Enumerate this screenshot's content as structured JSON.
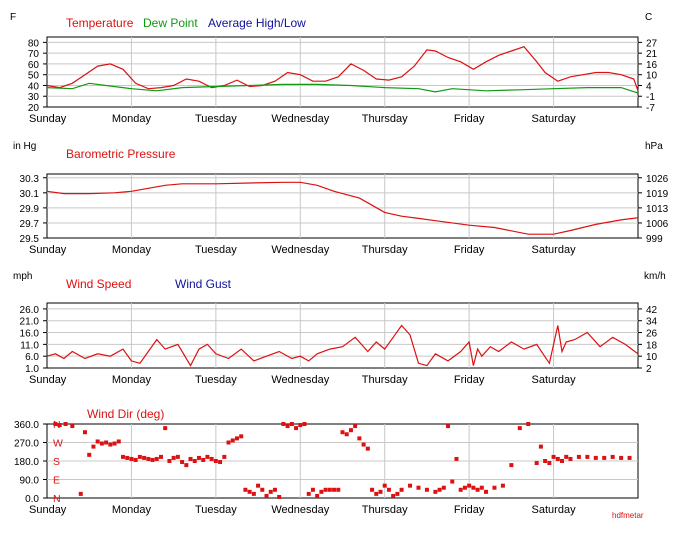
{
  "days": [
    "Sunday",
    "Monday",
    "Tuesday",
    "Wednesday",
    "Thursday",
    "Friday",
    "Saturday"
  ],
  "watermark": "hdfmetar",
  "colors": {
    "red": "#dd1111",
    "green": "#119911",
    "blue": "#111199",
    "grid": "#c8c8c8",
    "frame": "#000000"
  },
  "chart_data": [
    {
      "id": "temperature",
      "type": "line",
      "unit_left": "F",
      "unit_right": "C",
      "y_ticks": [
        80,
        70,
        60,
        50,
        40,
        30,
        20
      ],
      "right_ticks": [
        "27",
        "21",
        "16",
        "10",
        "4",
        "-1",
        "-7"
      ],
      "ylim": [
        20,
        85
      ],
      "grid": true,
      "legend": [
        {
          "label": "Temperature",
          "color": "#dd1111"
        },
        {
          "label": "Dew Point",
          "color": "#119911"
        },
        {
          "label": "Average High/Low",
          "color": "#111199"
        }
      ],
      "series": [
        {
          "name": "Temperature",
          "color": "#dd1111",
          "x": [
            0,
            0.15,
            0.3,
            0.45,
            0.6,
            0.75,
            0.9,
            1.05,
            1.2,
            1.35,
            1.5,
            1.65,
            1.8,
            1.95,
            2.1,
            2.25,
            2.4,
            2.55,
            2.7,
            2.85,
            3.0,
            3.15,
            3.3,
            3.45,
            3.6,
            3.75,
            3.9,
            4.05,
            4.2,
            4.35,
            4.5,
            4.6,
            4.75,
            4.9,
            5.05,
            5.2,
            5.35,
            5.5,
            5.65,
            5.8,
            5.9,
            6.05,
            6.2,
            6.35,
            6.5,
            6.65,
            6.8,
            6.95,
            7.0
          ],
          "values": [
            40,
            38,
            42,
            50,
            58,
            60,
            55,
            42,
            37,
            38,
            40,
            46,
            44,
            38,
            40,
            45,
            39,
            40,
            44,
            52,
            50,
            44,
            44,
            48,
            60,
            54,
            46,
            45,
            48,
            58,
            73,
            72,
            66,
            62,
            55,
            62,
            68,
            72,
            76,
            62,
            52,
            44,
            48,
            50,
            52,
            52,
            50,
            46,
            35
          ]
        },
        {
          "name": "Dew Point",
          "color": "#119911",
          "x": [
            0,
            0.3,
            0.5,
            0.7,
            1.0,
            1.3,
            1.6,
            2.0,
            2.4,
            2.8,
            3.2,
            3.6,
            4.0,
            4.4,
            4.6,
            4.8,
            5.2,
            5.6,
            6.0,
            6.4,
            6.8,
            7.0
          ],
          "values": [
            38,
            37,
            42,
            40,
            37,
            35,
            38,
            39,
            40,
            41,
            41,
            40,
            38,
            37,
            34,
            37,
            35,
            36,
            37,
            38,
            38,
            33
          ]
        }
      ]
    },
    {
      "id": "pressure",
      "type": "line",
      "unit_left": "in Hg",
      "unit_right": "hPa",
      "y_ticks": [
        30.3,
        30.1,
        29.9,
        29.7,
        29.5
      ],
      "right_ticks": [
        "1026",
        "1019",
        "1013",
        "1006",
        "999"
      ],
      "ylim": [
        29.5,
        30.35
      ],
      "grid": true,
      "legend": [
        {
          "label": "Barometric Pressure",
          "color": "#dd1111"
        }
      ],
      "series": [
        {
          "name": "Barometric Pressure",
          "color": "#dd1111",
          "x": [
            0,
            0.2,
            0.5,
            0.8,
            1.0,
            1.2,
            1.4,
            1.6,
            1.8,
            2.0,
            2.4,
            2.8,
            3.0,
            3.2,
            3.4,
            3.7,
            4.0,
            4.2,
            4.4,
            4.6,
            5.0,
            5.3,
            5.7,
            6.0,
            6.2,
            6.5,
            6.8,
            7.0
          ],
          "values": [
            30.12,
            30.09,
            30.09,
            30.1,
            30.12,
            30.16,
            30.2,
            30.22,
            30.22,
            30.22,
            30.23,
            30.24,
            30.24,
            30.2,
            30.12,
            30.03,
            29.84,
            29.79,
            29.76,
            29.73,
            29.67,
            29.64,
            29.55,
            29.55,
            29.6,
            29.68,
            29.74,
            29.77
          ]
        }
      ]
    },
    {
      "id": "wind",
      "type": "line",
      "unit_left": "mph",
      "unit_right": "km/h",
      "y_ticks": [
        "26.0",
        "21.0",
        "16.0",
        "11.0",
        "6.0",
        "1.0"
      ],
      "right_ticks": [
        "42",
        "34",
        "26",
        "18",
        "10",
        "2"
      ],
      "ylim": [
        1,
        28.5
      ],
      "grid": true,
      "legend": [
        {
          "label": "Wind Speed",
          "color": "#dd1111"
        },
        {
          "label": "Wind Gust",
          "color": "#111199"
        }
      ],
      "series": [
        {
          "name": "Wind Speed",
          "color": "#dd1111",
          "x": [
            0,
            0.1,
            0.2,
            0.3,
            0.45,
            0.6,
            0.75,
            0.9,
            1.0,
            1.1,
            1.2,
            1.3,
            1.4,
            1.55,
            1.7,
            1.8,
            1.9,
            2.0,
            2.15,
            2.3,
            2.45,
            2.6,
            2.75,
            2.9,
            3.0,
            3.1,
            3.2,
            3.35,
            3.5,
            3.65,
            3.8,
            3.9,
            4.0,
            4.1,
            4.2,
            4.3,
            4.4,
            4.5,
            4.6,
            4.75,
            4.9,
            5.0,
            5.05,
            5.1,
            5.15,
            5.25,
            5.35,
            5.5,
            5.65,
            5.8,
            5.95,
            6.05,
            6.1,
            6.15,
            6.25,
            6.4,
            6.55,
            6.7,
            6.85,
            7.0
          ],
          "values": [
            6,
            7,
            5,
            8,
            5,
            7,
            6,
            9,
            4,
            3,
            8,
            13,
            9,
            11,
            2,
            9,
            11,
            7,
            5,
            9,
            4,
            6,
            8,
            5,
            6,
            4,
            7,
            9,
            10,
            14,
            8,
            12,
            9,
            14,
            19,
            15,
            3,
            2,
            7,
            4,
            8,
            12,
            2,
            9,
            6,
            10,
            8,
            12,
            9,
            11,
            3,
            19,
            8,
            12,
            13,
            16,
            10,
            14,
            11,
            7
          ]
        }
      ]
    },
    {
      "id": "wind_dir",
      "type": "scatter",
      "unit_left": "",
      "unit_right": "",
      "y_ticks": [
        "360.0",
        "270.0",
        "180.0",
        "90.0",
        "0.0"
      ],
      "compass": [
        "N",
        "W",
        "S",
        "E",
        "N"
      ],
      "right_ticks": [],
      "ylim": [
        0,
        360
      ],
      "grid": true,
      "legend": [
        {
          "label": "Wind Dir (deg)",
          "color": "#dd1111"
        }
      ],
      "series": [
        {
          "name": "Wind Dir (deg)",
          "color": "#dd1111",
          "x": [
            0.1,
            0.15,
            0.22,
            0.3,
            0.4,
            0.45,
            0.5,
            0.55,
            0.6,
            0.65,
            0.7,
            0.75,
            0.8,
            0.85,
            0.9,
            0.95,
            1.0,
            1.05,
            1.1,
            1.15,
            1.2,
            1.25,
            1.3,
            1.35,
            1.4,
            1.45,
            1.5,
            1.55,
            1.6,
            1.65,
            1.7,
            1.75,
            1.8,
            1.85,
            1.9,
            1.95,
            2.0,
            2.05,
            2.1,
            2.15,
            2.2,
            2.25,
            2.3,
            2.35,
            2.4,
            2.45,
            2.5,
            2.55,
            2.6,
            2.65,
            2.7,
            2.75,
            2.8,
            2.85,
            2.9,
            2.95,
            3.0,
            3.05,
            3.1,
            3.15,
            3.2,
            3.25,
            3.3,
            3.35,
            3.4,
            3.45,
            3.5,
            3.55,
            3.6,
            3.65,
            3.7,
            3.75,
            3.8,
            3.85,
            3.9,
            3.95,
            4.0,
            4.05,
            4.1,
            4.15,
            4.2,
            4.3,
            4.4,
            4.5,
            4.6,
            4.65,
            4.7,
            4.75,
            4.8,
            4.85,
            4.9,
            4.95,
            5.0,
            5.05,
            5.1,
            5.15,
            5.2,
            5.3,
            5.4,
            5.5,
            5.6,
            5.7,
            5.8,
            5.85,
            5.9,
            5.95,
            6.0,
            6.05,
            6.1,
            6.15,
            6.2,
            6.3,
            6.4,
            6.5,
            6.6,
            6.7,
            6.8,
            6.9
          ],
          "values": [
            360,
            355,
            360,
            350,
            20,
            320,
            210,
            250,
            275,
            265,
            270,
            260,
            265,
            275,
            200,
            195,
            190,
            185,
            200,
            195,
            190,
            185,
            190,
            200,
            340,
            180,
            195,
            200,
            175,
            160,
            190,
            180,
            195,
            185,
            200,
            190,
            180,
            175,
            200,
            270,
            280,
            290,
            300,
            40,
            30,
            20,
            60,
            40,
            10,
            30,
            40,
            5,
            360,
            350,
            360,
            340,
            355,
            360,
            20,
            40,
            10,
            30,
            40,
            40,
            40,
            40,
            320,
            310,
            330,
            350,
            290,
            260,
            240,
            40,
            20,
            30,
            60,
            40,
            10,
            20,
            40,
            60,
            50,
            40,
            30,
            40,
            50,
            350,
            80,
            190,
            40,
            50,
            60,
            50,
            40,
            50,
            30,
            50,
            60,
            160,
            340,
            360,
            170,
            250,
            180,
            170,
            200,
            190,
            180,
            200,
            190,
            200,
            200,
            195,
            195,
            200,
            195,
            195
          ]
        }
      ]
    }
  ]
}
